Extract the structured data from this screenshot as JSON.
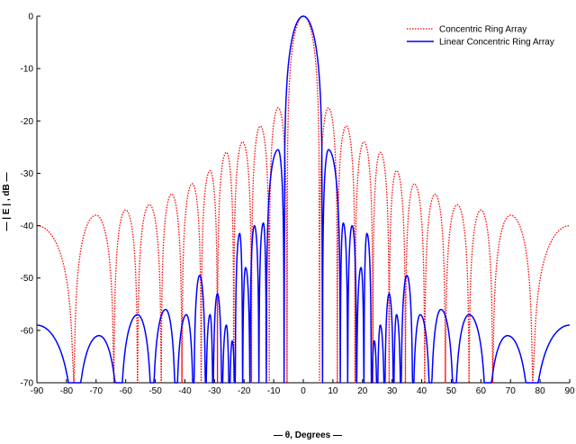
{
  "chart_data": {
    "type": "line",
    "title": "",
    "xlabel": "— θ, Degrees —",
    "ylabel": "— | E | , dB —",
    "xlim": [
      -90,
      90
    ],
    "ylim": [
      -70,
      0
    ],
    "xticks": [
      -90,
      -80,
      -70,
      -60,
      -50,
      -40,
      -30,
      -20,
      -10,
      0,
      10,
      20,
      30,
      40,
      50,
      60,
      70,
      80,
      90
    ],
    "yticks": [
      0,
      -10,
      -20,
      -30,
      -40,
      -50,
      -60,
      -70
    ],
    "xtick_labels": [
      "-90",
      "-80",
      "-70",
      "-60",
      "-50",
      "-40",
      "-30",
      "-20",
      "-10",
      "0",
      "10",
      "20",
      "30",
      "40",
      "50",
      "60",
      "70",
      "80",
      "90"
    ],
    "ytick_labels": [
      "0",
      "-10",
      "-20",
      "-30",
      "-40",
      "-50",
      "-60",
      "-70"
    ],
    "grid": false,
    "legend_position": "top-right",
    "series": [
      {
        "name": "Concentric Ring Array",
        "color": "#ff0000",
        "style": "dotted",
        "nulls": [
          5.5,
          11.5,
          17.5,
          23.5,
          29,
          34.5,
          41,
          48,
          56,
          64,
          77.5
        ],
        "peaks": [
          [
            0,
            0
          ],
          [
            8.5,
            -17.5
          ],
          [
            14.5,
            -21
          ],
          [
            20.5,
            -24
          ],
          [
            26,
            -26
          ],
          [
            31.5,
            -29.5
          ],
          [
            37.5,
            -32
          ],
          [
            44.5,
            -34
          ],
          [
            52,
            -36
          ],
          [
            60,
            -37
          ],
          [
            70,
            -38
          ],
          [
            90,
            -40
          ]
        ]
      },
      {
        "name": "Linear Concentric Ring Array",
        "color": "#0000ff",
        "style": "solid",
        "nulls": [
          6.5,
          12.5,
          15,
          18,
          20.5,
          23,
          25,
          27.5,
          30.5,
          33,
          37,
          43,
          51,
          62,
          77
        ],
        "peaks": [
          [
            0,
            0
          ],
          [
            8.5,
            -25.5
          ],
          [
            13.5,
            -39.5
          ],
          [
            16.5,
            -40
          ],
          [
            19.5,
            -48
          ],
          [
            21.5,
            -41.5
          ],
          [
            24,
            -62
          ],
          [
            26,
            -59
          ],
          [
            29,
            -53
          ],
          [
            31.5,
            -57
          ],
          [
            35,
            -49.5
          ],
          [
            39.5,
            -57
          ],
          [
            46.5,
            -56
          ],
          [
            56,
            -57
          ],
          [
            69,
            -61
          ],
          [
            90,
            -59
          ]
        ]
      }
    ]
  }
}
